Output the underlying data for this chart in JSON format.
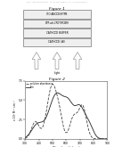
{
  "header_text": "Patent Application Publication    May 26, 2016  Sheet 1 of 106    US 2016/0149148 A1",
  "figure1_title": "Figure 1",
  "figure2_title": "Figure 2",
  "layers": [
    "ITO ANODE/HTPB",
    "DPP-alt-CPDT/PCBM",
    "CATHODE BUFFER",
    "CATHODE (Al)"
  ],
  "light_label": "Light",
  "plot_xlabel": "Wavelength (nm)",
  "plot_ylabel": "x 10⁴ M⁻¹ cm⁻¹",
  "legend_entries": [
    "solution absorbance",
    "film"
  ],
  "line1_color": "#444444",
  "line2_color": "#222222",
  "xlim": [
    300,
    900
  ],
  "ylim": [
    0.0,
    7.5
  ],
  "yticks": [
    0.0,
    2.5,
    5.0,
    7.5
  ],
  "xticks": [
    300,
    400,
    500,
    600,
    700,
    800,
    900
  ],
  "bg_color": "#ffffff"
}
